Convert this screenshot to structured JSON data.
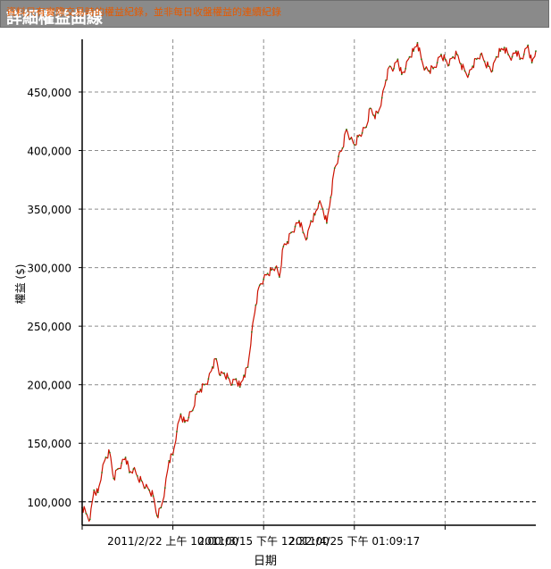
{
  "window": {
    "title": "詳細權益曲線",
    "subtitle": "資料只有實際交易時的權益紀錄，並非每日收盤權益的連續紀錄"
  },
  "chart_data": {
    "type": "line",
    "xlabel": "日期",
    "ylabel": "權益 ($)",
    "ylim": [
      80000,
      495000
    ],
    "yticks": [
      100000,
      150000,
      200000,
      250000,
      300000,
      350000,
      400000,
      450000
    ],
    "ytick_labels": [
      "100,000",
      "150,000",
      "200,000",
      "250,000",
      "300,000",
      "350,000",
      "400,000",
      "450,000"
    ],
    "xtick_labels": [
      "2011/2/22 上午 10:00:00",
      "2011/3/15 下午 12:32:00",
      "2011/4/25 下午 01:09:17"
    ],
    "x_start": "2011/2/1",
    "x_end": "2011/5/27",
    "baseline": 100000,
    "grid": true,
    "series": [
      {
        "color": "#cc1100",
        "x": [
          "2011/2/1",
          "2011/2/2",
          "2011/2/3",
          "2011/2/4",
          "2011/2/5",
          "2011/2/6",
          "2011/2/7",
          "2011/2/8",
          "2011/2/9",
          "2011/2/10",
          "2011/2/11",
          "2011/2/12",
          "2011/2/13",
          "2011/2/14",
          "2011/2/15",
          "2011/2/16",
          "2011/2/17",
          "2011/2/18",
          "2011/2/19",
          "2011/2/20",
          "2011/2/21",
          "2011/2/22",
          "2011/2/23",
          "2011/2/24",
          "2011/2/25",
          "2011/2/26",
          "2011/2/27",
          "2011/2/28",
          "2011/3/1",
          "2011/3/2",
          "2011/3/3",
          "2011/3/4",
          "2011/3/5",
          "2011/3/6",
          "2011/3/7",
          "2011/3/8",
          "2011/3/9",
          "2011/3/10",
          "2011/3/11",
          "2011/3/12",
          "2011/3/13",
          "2011/3/14",
          "2011/3/15",
          "2011/3/16",
          "2011/3/17",
          "2011/3/18",
          "2011/3/19",
          "2011/3/20",
          "2011/3/21",
          "2011/3/22",
          "2011/3/23",
          "2011/3/24",
          "2011/3/25",
          "2011/3/26",
          "2011/3/27",
          "2011/3/28",
          "2011/3/29",
          "2011/3/30",
          "2011/3/31",
          "2011/4/1",
          "2011/4/2",
          "2011/4/3",
          "2011/4/4",
          "2011/4/5",
          "2011/4/6",
          "2011/4/7",
          "2011/4/8",
          "2011/4/9",
          "2011/4/10",
          "2011/4/11",
          "2011/4/12",
          "2011/4/13",
          "2011/4/14",
          "2011/4/15",
          "2011/4/16",
          "2011/4/17",
          "2011/4/18",
          "2011/4/19",
          "2011/4/20",
          "2011/4/21",
          "2011/4/22",
          "2011/4/23",
          "2011/4/24",
          "2011/4/25",
          "2011/4/26",
          "2011/4/27",
          "2011/4/28",
          "2011/4/29",
          "2011/4/30",
          "2011/5/1",
          "2011/5/2",
          "2011/5/3",
          "2011/5/4",
          "2011/5/5",
          "2011/5/6",
          "2011/5/7",
          "2011/5/8",
          "2011/5/9",
          "2011/5/10",
          "2011/5/11",
          "2011/5/12",
          "2011/5/13",
          "2011/5/14",
          "2011/5/15",
          "2011/5/16",
          "2011/5/17",
          "2011/5/18",
          "2011/5/19",
          "2011/5/20",
          "2011/5/21",
          "2011/5/22",
          "2011/5/23",
          "2011/5/24",
          "2011/5/25",
          "2011/5/26",
          "2011/5/27"
        ],
        "y": [
          95000,
          90000,
          85000,
          110000,
          108000,
          125000,
          138000,
          142000,
          120000,
          128000,
          133000,
          138000,
          125000,
          128000,
          122000,
          118000,
          112000,
          110000,
          105000,
          88000,
          95000,
          112000,
          135000,
          140000,
          160000,
          175000,
          168000,
          172000,
          178000,
          192000,
          196000,
          200000,
          205000,
          215000,
          222000,
          208000,
          210000,
          206000,
          200000,
          205000,
          198000,
          208000,
          215000,
          245000,
          268000,
          285000,
          290000,
          295000,
          298000,
          300000,
          292000,
          318000,
          322000,
          330000,
          335000,
          340000,
          330000,
          325000,
          340000,
          345000,
          355000,
          350000,
          338000,
          360000,
          385000,
          395000,
          402000,
          418000,
          410000,
          405000,
          412000,
          415000,
          420000,
          436000,
          430000,
          432000,
          445000,
          460000,
          472000,
          470000,
          478000,
          465000,
          470000,
          480000,
          485000,
          492000,
          478000,
          470000,
          468000,
          470000,
          475000,
          482000,
          478000,
          473000,
          480000,
          482000,
          474000,
          468000,
          465000,
          472000,
          478000,
          482000,
          476000,
          472000,
          468000,
          480000,
          485000,
          488000,
          482000,
          480000,
          485000,
          478000,
          482000,
          490000,
          475000,
          485000
        ]
      }
    ]
  }
}
